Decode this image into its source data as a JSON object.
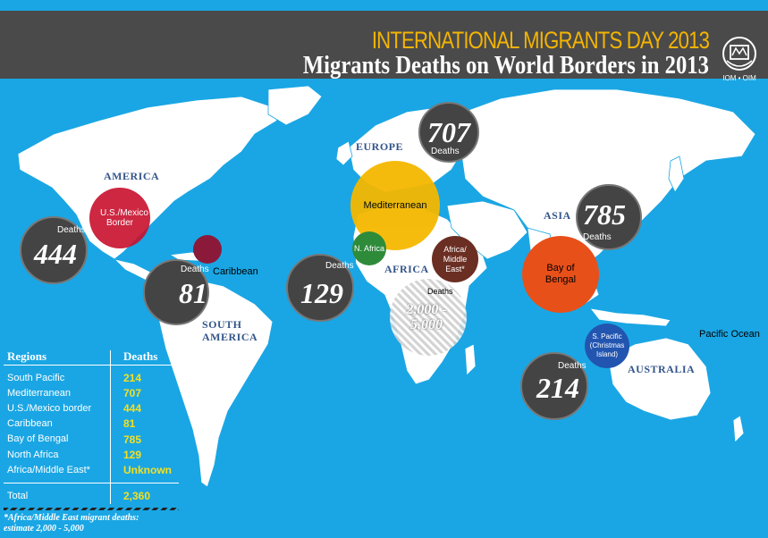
{
  "header": {
    "supertitle": "INTERNATIONAL MIGRANTS DAY 2013",
    "title": "Migrants Deaths on World Borders in 2013",
    "logo_text": "IOM • OIM"
  },
  "regions": {
    "europe": "EUROPE",
    "america": "AMERICA",
    "asia": "ASIA",
    "africa": "AFRICA",
    "south_america": "SOUTH AMERICA",
    "australia": "AUSTRALIA",
    "pacific_ocean": "Pacific Ocean"
  },
  "markers": {
    "mediterranean": "Mediterranean",
    "us_mexico": "U.S./Mexico Border",
    "caribbean": "Caribbean",
    "n_africa": "N. Africa",
    "africa_me": "Africa/ Middle East*",
    "bay_of_bengal": "Bay of Bengal",
    "s_pacific": "S. Pacific (Christmas Island)"
  },
  "bubbles": {
    "deaths_label": "Deaths",
    "med": "707",
    "us": "444",
    "carib": "81",
    "nafrica": "129",
    "bengal": "785",
    "spacific": "214",
    "africa_me": "2,000 - 5,000"
  },
  "table": {
    "col_region": "Regions",
    "col_deaths": "Deaths",
    "rows": [
      {
        "region": "South Pacific",
        "deaths": "214"
      },
      {
        "region": "Mediterranean",
        "deaths": "707"
      },
      {
        "region": "U.S./Mexico border",
        "deaths": "444"
      },
      {
        "region": "Caribbean",
        "deaths": "81"
      },
      {
        "region": "Bay of Bengal",
        "deaths": "785"
      },
      {
        "region": "North Africa",
        "deaths": "129"
      },
      {
        "region": "Africa/Middle East*",
        "deaths": "Unknown"
      }
    ],
    "total_label": "Total",
    "total_value": "2,360"
  },
  "footnote": {
    "line1": "*Africa/Middle East migrant deaths:",
    "line2": "estimate 2,000 - 5,000"
  },
  "colors": {
    "ocean": "#1aa6e4",
    "header": "#4a4a4a",
    "mediterranean": "#f5b800",
    "us_mexico": "#c8102e",
    "caribbean": "#8b1a3a",
    "n_africa": "#2e8b3a",
    "africa_me": "#6b2e22",
    "bay_of_bengal": "#e8501a",
    "s_pacific": "#2255b0",
    "values": "#f4e020"
  }
}
